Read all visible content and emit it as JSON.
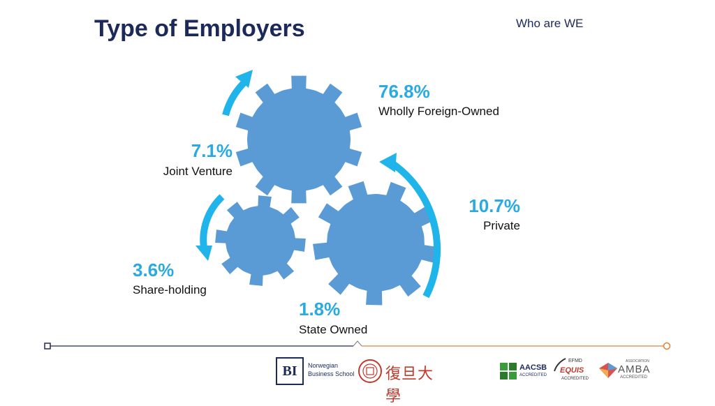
{
  "slide": {
    "title": "Type of Employers",
    "tag": "Who are WE"
  },
  "items": [
    {
      "value": "76.8%",
      "label": "Wholly Foreign-Owned"
    },
    {
      "value": "7.1%",
      "label": "Joint Venture"
    },
    {
      "value": "10.7%",
      "label": "Private"
    },
    {
      "value": "3.6%",
      "label": "Share-holding"
    },
    {
      "value": "1.8%",
      "label": "State Owned"
    }
  ],
  "colors": {
    "gear": "#5b9bd5",
    "arrow": "#1fb4ea",
    "title": "#1c2a5a",
    "line_left": "#1c2a5a",
    "line_right": "#e0803a"
  },
  "footer": {
    "bi": {
      "mark": "BI",
      "line1": "Norwegian",
      "line2": "Business School"
    },
    "fudan": {
      "mark": "復旦大學"
    },
    "aacsb": {
      "name": "AACSB",
      "sub": "ACCREDITED"
    },
    "equis": {
      "top": "EFMD",
      "name": "EQUIS",
      "sub": "ACCREDITED"
    },
    "amba": {
      "top": "ASSOCIATION",
      "name": "AMBA",
      "sub": "ACCREDITED"
    }
  }
}
